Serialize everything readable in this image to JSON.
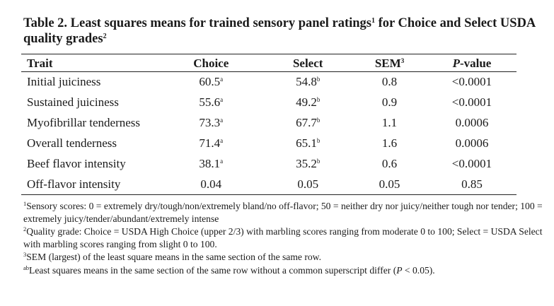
{
  "title": {
    "text_part1": "Table 2. Least squares means for trained sensory panel ratings",
    "sup1": "1",
    "text_part2": " for Choice and Select USDA quality grades",
    "sup2": "2"
  },
  "table": {
    "headers": {
      "trait": "Trait",
      "choice": "Choice",
      "select": "Select",
      "sem_text": "SEM",
      "sem_sup": "3",
      "p_italic": "P",
      "p_rest": "-value"
    },
    "rows": [
      {
        "trait": "Initial juiciness",
        "choice": "60.5",
        "choice_sup": "a",
        "select": "54.8",
        "select_sup": "b",
        "sem": "0.8",
        "p": "<0.0001"
      },
      {
        "trait": "Sustained juiciness",
        "choice": "55.6",
        "choice_sup": "a",
        "select": "49.2",
        "select_sup": "b",
        "sem": "0.9",
        "p": "<0.0001"
      },
      {
        "trait": "Myofibrillar tenderness",
        "choice": "73.3",
        "choice_sup": "a",
        "select": "67.7",
        "select_sup": "b",
        "sem": "1.1",
        "p": "0.0006"
      },
      {
        "trait": "Overall tenderness",
        "choice": "71.4",
        "choice_sup": "a",
        "select": "65.1",
        "select_sup": "b",
        "sem": "1.6",
        "p": "0.0006"
      },
      {
        "trait": "Beef flavor intensity",
        "choice": "38.1",
        "choice_sup": "a",
        "select": "35.2",
        "select_sup": "b",
        "sem": "0.6",
        "p": "<0.0001"
      },
      {
        "trait": "Off-flavor intensity",
        "choice": "0.04",
        "choice_sup": "",
        "select": "0.05",
        "select_sup": "",
        "sem": "0.05",
        "p": "0.85"
      }
    ]
  },
  "footnotes": {
    "fn1_marker": "1",
    "fn1_text": "Sensory scores: 0 = extremely dry/tough/non/extremely bland/no off-flavor; 50 = neither dry nor juicy/neither tough nor tender; 100 = extremely juicy/tender/abundant/extremely intense",
    "fn2_marker": "2",
    "fn2_text": "Quality grade: Choice = USDA High Choice (upper 2/3) with marbling scores ranging from moderate 0 to 100; Select = USDA Select with marbling scores ranging from slight 0 to 100.",
    "fn3_marker": "3",
    "fn3_text": "SEM (largest) of the least square means in the same section of the same row.",
    "fn4_marker": "ab",
    "fn4_text_a": "Least squares means in the same section of the same row without a common superscript differ (",
    "fn4_p": "P",
    "fn4_text_b": " < 0.05)."
  }
}
